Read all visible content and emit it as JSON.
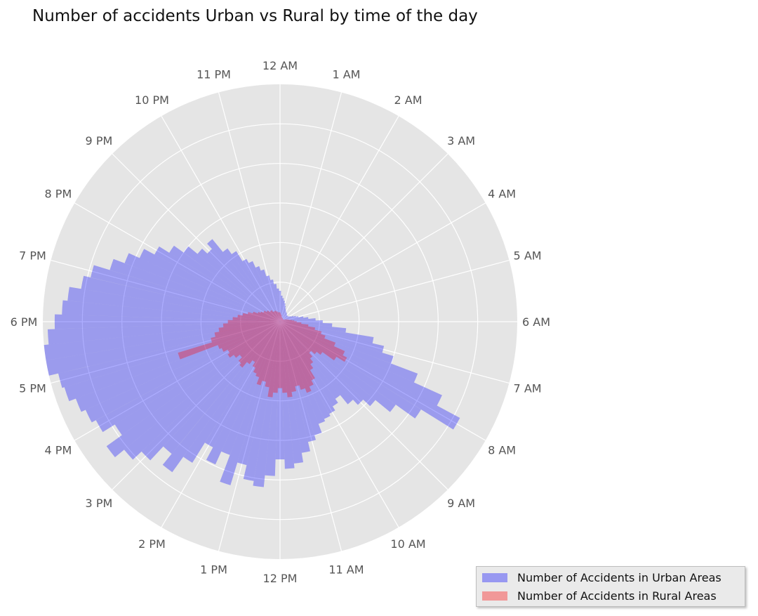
{
  "chart_data": {
    "type": "polar-bar",
    "title": "Number of accidents Urban vs Rural by time of the day",
    "theta_tick_labels": [
      "12 AM",
      "1 AM",
      "2 AM",
      "3 AM",
      "4 AM",
      "5 AM",
      "6 AM",
      "7 AM",
      "8 AM",
      "9 AM",
      "10 AM",
      "11 AM",
      "12 PM",
      "1 PM",
      "2 PM",
      "3 PM",
      "4 PM",
      "5 PM",
      "6 PM",
      "7 PM",
      "8 PM",
      "9 PM",
      "10 PM",
      "11 PM"
    ],
    "direction": "clockwise",
    "zero_location": "top",
    "r_max": 1.0,
    "grid": true,
    "legend_position": "lower-right",
    "series": [
      {
        "name": "Number of Accidents in Urban Areas",
        "color": "#0000ff",
        "opacity": 0.32,
        "x": [
          0.0,
          0.25,
          0.5,
          0.75,
          1.0,
          1.25,
          1.5,
          1.75,
          2.0,
          2.25,
          2.5,
          2.75,
          3.0,
          3.25,
          3.5,
          3.75,
          4.0,
          4.25,
          4.5,
          4.75,
          5.0,
          5.25,
          5.5,
          5.75,
          6.0,
          6.25,
          6.5,
          6.75,
          7.0,
          7.25,
          7.5,
          7.75,
          8.0,
          8.25,
          8.5,
          8.75,
          9.0,
          9.25,
          9.5,
          9.75,
          10.0,
          10.25,
          10.5,
          10.75,
          11.0,
          11.25,
          11.5,
          11.75,
          12.0,
          12.25,
          12.5,
          12.75,
          13.0,
          13.25,
          13.5,
          13.75,
          14.0,
          14.25,
          14.5,
          14.75,
          15.0,
          15.25,
          15.5,
          15.75,
          16.0,
          16.25,
          16.5,
          16.75,
          17.0,
          17.25,
          17.5,
          17.75,
          18.0,
          18.25,
          18.5,
          18.75,
          19.0,
          19.25,
          19.5,
          19.75,
          20.0,
          20.25,
          20.5,
          20.75,
          21.0,
          21.25,
          21.5,
          21.75,
          22.0,
          22.25,
          22.5,
          22.75,
          23.0,
          23.25,
          23.5,
          23.75
        ],
        "values": [
          0.13,
          0.11,
          0.1,
          0.09,
          0.08,
          0.07,
          0.06,
          0.055,
          0.05,
          0.048,
          0.045,
          0.045,
          0.04,
          0.04,
          0.04,
          0.04,
          0.045,
          0.05,
          0.06,
          0.07,
          0.08,
          0.1,
          0.12,
          0.15,
          0.18,
          0.22,
          0.28,
          0.4,
          0.45,
          0.5,
          0.62,
          0.75,
          0.86,
          0.7,
          0.6,
          0.52,
          0.48,
          0.45,
          0.4,
          0.42,
          0.44,
          0.45,
          0.46,
          0.5,
          0.52,
          0.56,
          0.6,
          0.62,
          0.58,
          0.65,
          0.7,
          0.68,
          0.62,
          0.72,
          0.6,
          0.66,
          0.6,
          0.7,
          0.78,
          0.72,
          0.8,
          0.85,
          0.9,
          0.82,
          0.88,
          0.9,
          0.92,
          0.95,
          0.96,
          1.0,
          1.0,
          0.98,
          0.95,
          0.92,
          0.9,
          0.85,
          0.82,
          0.75,
          0.7,
          0.65,
          0.6,
          0.55,
          0.5,
          0.45,
          0.42,
          0.45,
          0.38,
          0.35,
          0.3,
          0.28,
          0.25,
          0.23,
          0.2,
          0.18,
          0.16,
          0.14
        ]
      },
      {
        "name": "Number of Accidents in Rural Areas",
        "color": "#ff0000",
        "opacity": 0.32,
        "x": [
          0.0,
          0.25,
          0.5,
          0.75,
          1.0,
          1.25,
          1.5,
          1.75,
          2.0,
          2.25,
          2.5,
          2.75,
          3.0,
          3.25,
          3.5,
          3.75,
          4.0,
          4.25,
          4.5,
          4.75,
          5.0,
          5.25,
          5.5,
          5.75,
          6.0,
          6.25,
          6.5,
          6.75,
          7.0,
          7.25,
          7.5,
          7.75,
          8.0,
          8.25,
          8.5,
          8.75,
          9.0,
          9.25,
          9.5,
          9.75,
          10.0,
          10.25,
          10.5,
          10.75,
          11.0,
          11.25,
          11.5,
          11.75,
          12.0,
          12.25,
          12.5,
          12.75,
          13.0,
          13.25,
          13.5,
          13.75,
          14.0,
          14.25,
          14.5,
          14.75,
          15.0,
          15.25,
          15.5,
          15.75,
          16.0,
          16.25,
          16.5,
          16.75,
          17.0,
          17.25,
          17.5,
          17.75,
          18.0,
          18.25,
          18.5,
          18.75,
          19.0,
          19.25,
          19.5,
          19.75,
          20.0,
          20.25,
          20.5,
          20.75,
          21.0,
          21.25,
          21.5,
          21.75,
          22.0,
          22.25,
          22.5,
          22.75,
          23.0,
          23.25,
          23.5,
          23.75
        ],
        "values": [
          0.04,
          0.035,
          0.03,
          0.03,
          0.025,
          0.02,
          0.02,
          0.02,
          0.02,
          0.018,
          0.018,
          0.018,
          0.016,
          0.016,
          0.016,
          0.016,
          0.018,
          0.02,
          0.025,
          0.03,
          0.035,
          0.04,
          0.05,
          0.06,
          0.07,
          0.09,
          0.12,
          0.15,
          0.18,
          0.2,
          0.25,
          0.3,
          0.32,
          0.28,
          0.22,
          0.2,
          0.18,
          0.2,
          0.22,
          0.24,
          0.28,
          0.3,
          0.32,
          0.3,
          0.28,
          0.3,
          0.32,
          0.3,
          0.28,
          0.3,
          0.32,
          0.28,
          0.26,
          0.28,
          0.25,
          0.24,
          0.22,
          0.2,
          0.22,
          0.25,
          0.24,
          0.22,
          0.24,
          0.26,
          0.25,
          0.27,
          0.28,
          0.45,
          0.3,
          0.28,
          0.26,
          0.24,
          0.22,
          0.2,
          0.18,
          0.16,
          0.14,
          0.12,
          0.1,
          0.09,
          0.08,
          0.08,
          0.07,
          0.07,
          0.06,
          0.06,
          0.06,
          0.05,
          0.05,
          0.05,
          0.05,
          0.045,
          0.045,
          0.04,
          0.04,
          0.04
        ]
      }
    ]
  }
}
